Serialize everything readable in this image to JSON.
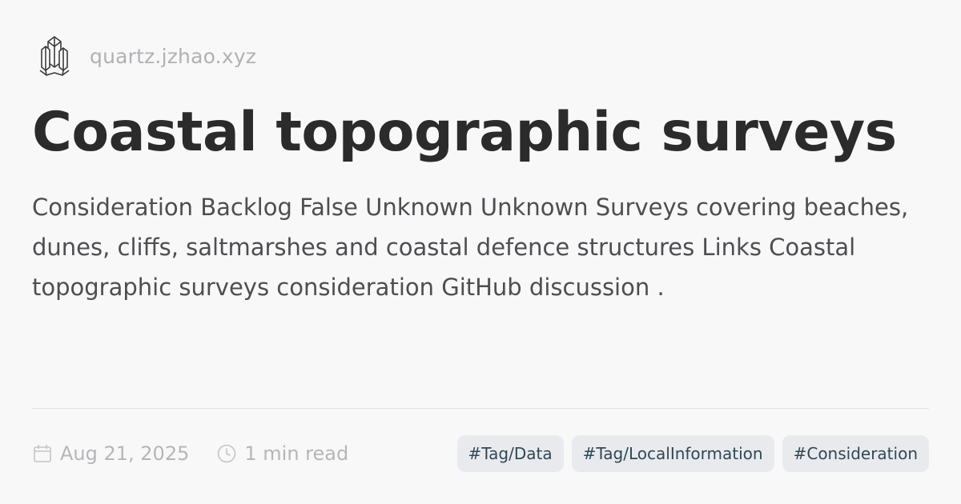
{
  "site": {
    "name": "quartz.jzhao.xyz",
    "logo_icon": "crystal-logo-icon"
  },
  "page": {
    "title": "Coastal topographic surveys",
    "description": "Consideration Backlog False Unknown Unknown Surveys covering beaches, dunes, cliffs, saltmarshes and coastal defence structures Links Coastal topographic surveys consideration GitHub discussion ."
  },
  "meta": {
    "date": "Aug 21, 2025",
    "date_icon": "calendar-icon",
    "reading_time": "1 min read",
    "reading_time_icon": "clock-icon"
  },
  "tags": [
    {
      "label": "#Tag/Data"
    },
    {
      "label": "#Tag/LocalInformation"
    },
    {
      "label": "#Consideration"
    }
  ],
  "colors": {
    "background": "#f8f8f9",
    "title": "#2b2b2b",
    "body_text": "#4e4e52",
    "muted": "#b1b1b5",
    "tag_bg": "#e9eaed",
    "tag_text": "#2f4856"
  }
}
